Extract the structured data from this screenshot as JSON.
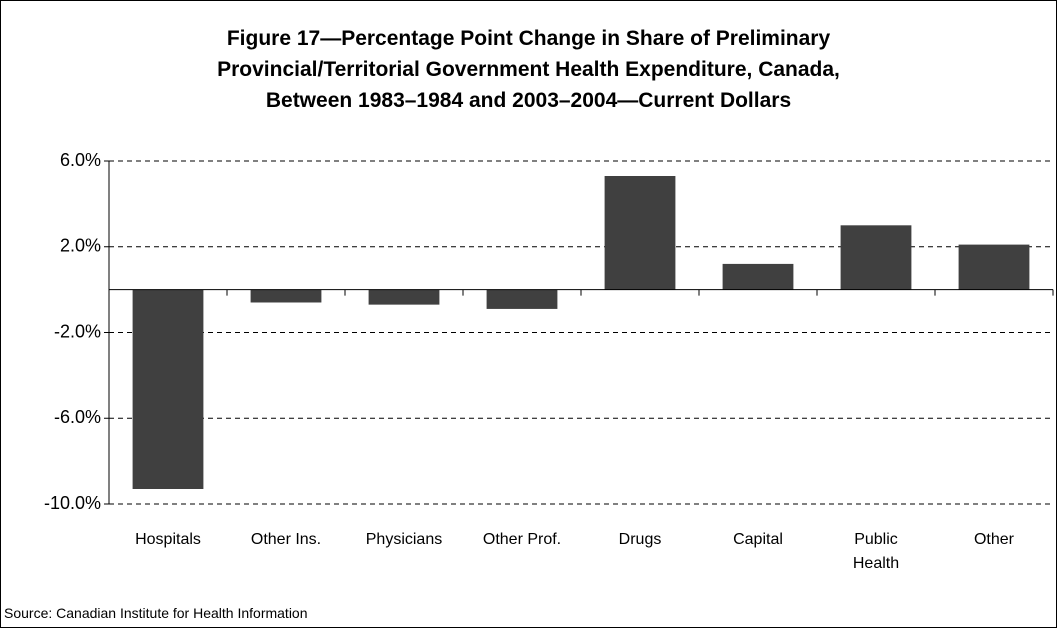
{
  "chart_data": {
    "type": "bar",
    "title": [
      "Figure 17—Percentage Point Change in Share of Preliminary",
      "Provincial/Territorial Government Health Expenditure, Canada,",
      "Between 1983–1984 and 2003–2004—Current Dollars"
    ],
    "categories": [
      "Hospitals",
      "Other Ins.",
      "Physicians",
      "Other Prof.",
      "Drugs",
      "Capital",
      "Public Health",
      "Other"
    ],
    "values": [
      -9.3,
      -0.6,
      -0.7,
      -0.9,
      5.3,
      1.2,
      3.0,
      2.1
    ],
    "color": "#404040",
    "ylim": [
      -10,
      6
    ],
    "yticks": [
      {
        "value": 6,
        "label": "6.0%"
      },
      {
        "value": 2,
        "label": "2.0%"
      },
      {
        "value": -2,
        "label": "-2.0%"
      },
      {
        "value": -6,
        "label": "-6.0%"
      },
      {
        "value": -10,
        "label": "-10.0%"
      }
    ],
    "grid": true,
    "source": "Source: Canadian Institute for Health Information"
  }
}
